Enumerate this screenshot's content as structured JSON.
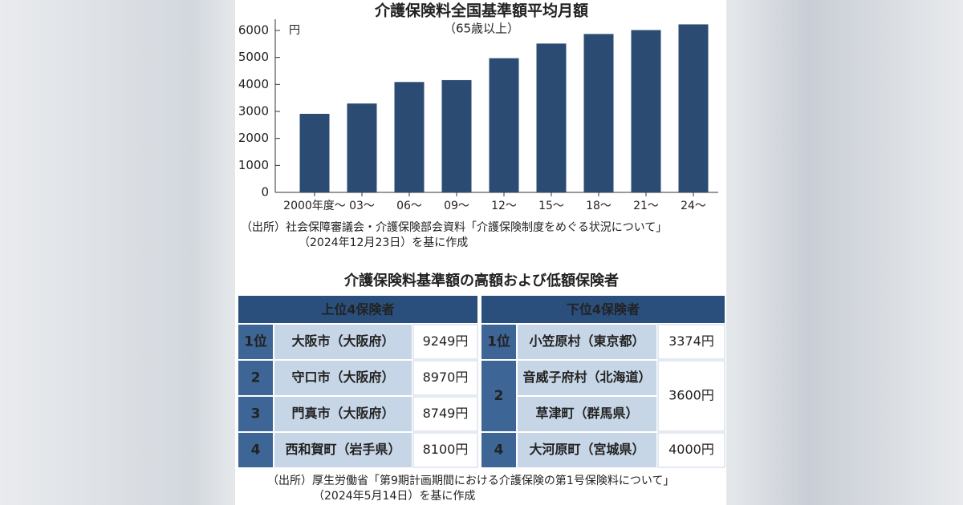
{
  "chart_data": {
    "type": "bar",
    "title": "介護保険料全国基準額平均月額",
    "subtitle": "（65歳以上）",
    "unit": "円",
    "categories": [
      "2000年度〜",
      "03〜",
      "06〜",
      "09〜",
      "12〜",
      "15〜",
      "18〜",
      "21〜",
      "24〜"
    ],
    "values": [
      2911,
      3293,
      4090,
      4160,
      4972,
      5514,
      5869,
      6014,
      6225
    ],
    "color": "#2b4b72",
    "ylim": [
      0,
      6000
    ],
    "yticks": [
      0,
      1000,
      2000,
      3000,
      4000,
      5000,
      6000
    ],
    "source": [
      "（出所）社会保障審議会・介護保険部会資料「介護保険制度をめぐる状況について」",
      "（2024年12月23日）を基に作成"
    ]
  },
  "table": {
    "title": "介護保険料基準額の高額および低額保険者",
    "left": {
      "header": "上位4保険者",
      "rows": [
        {
          "rank": "1位",
          "names": [
            "大阪市（大阪府）"
          ],
          "value": "9249円"
        },
        {
          "rank": "2",
          "names": [
            "守口市（大阪府）"
          ],
          "value": "8970円"
        },
        {
          "rank": "3",
          "names": [
            "門真市（大阪府）"
          ],
          "value": "8749円"
        },
        {
          "rank": "4",
          "names": [
            "西和賀町（岩手県）"
          ],
          "value": "8100円"
        }
      ]
    },
    "right": {
      "header": "下位4保険者",
      "rows": [
        {
          "rank": "1位",
          "names": [
            "小笠原村（東京都）"
          ],
          "value": "3374円"
        },
        {
          "rank": "2",
          "names": [
            "音威子府村（北海道）",
            "草津町（群馬県）"
          ],
          "value": "3600円"
        },
        {
          "rank": "4",
          "names": [
            "大河原町（宮城県）"
          ],
          "value": "4000円"
        }
      ]
    },
    "source": [
      "（出所）厚生労働省「第9期計画期間における介護保険の第1号保険料について」",
      "（2024年5月14日）を基に作成"
    ]
  }
}
